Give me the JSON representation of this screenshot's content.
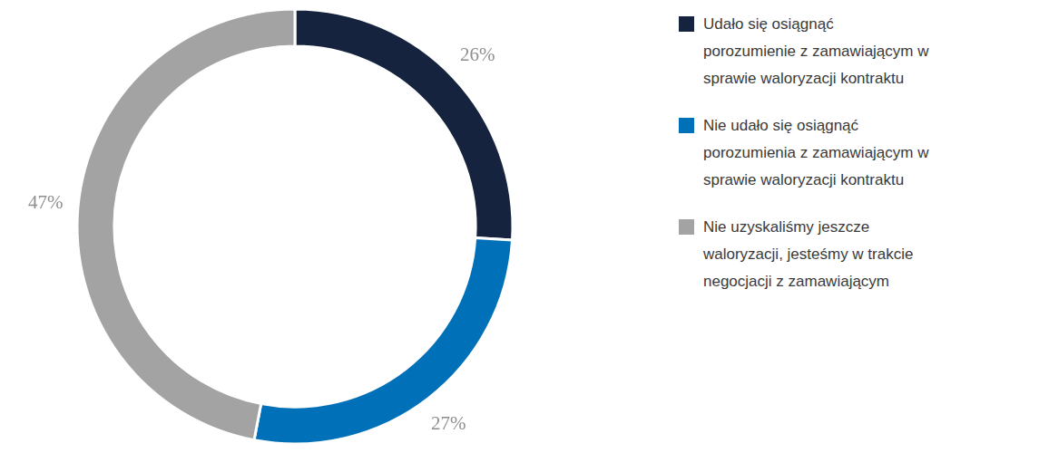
{
  "chart_data": {
    "type": "doughnut",
    "categories": [
      "Udało się osiągnąć porozumienie z zamawiającym w sprawie waloryzacji kontraktu",
      "Nie udało się osiągnąć porozumienia z zamawiającym w sprawie waloryzacji kontraktu",
      "Nie uzyskaliśmy jeszcze waloryzacji, jesteśmy w trakcie negocjacji z zamawiającym"
    ],
    "values": [
      26,
      27,
      47
    ],
    "value_labels": [
      "26%",
      "27%",
      "47%"
    ],
    "colors": [
      "#15233f",
      "#0070b8",
      "#a3a3a3"
    ],
    "data_labels": true,
    "legend": "right"
  }
}
